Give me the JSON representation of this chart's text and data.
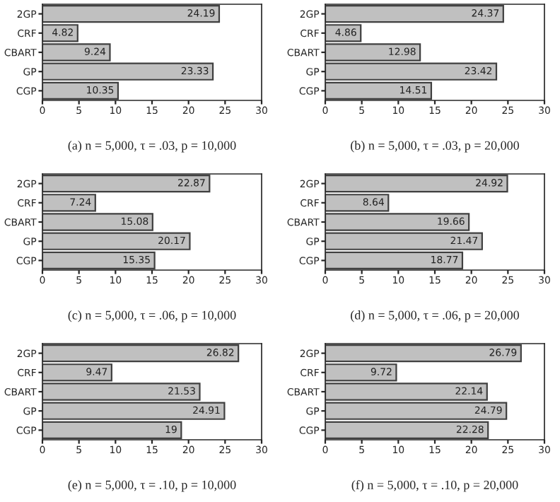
{
  "chart_data": [
    {
      "type": "bar",
      "orientation": "horizontal",
      "title": "(a) n = 5,000, τ = .03, p = 10,000",
      "categories": [
        "2GP",
        "CRF",
        "CBART",
        "GP",
        "CGP"
      ],
      "values": [
        24.19,
        4.82,
        9.24,
        23.33,
        10.35
      ],
      "color": "#c0c0c0",
      "xlim": [
        0,
        30
      ],
      "xticks": [
        0,
        5,
        10,
        15,
        20,
        25,
        30
      ],
      "data_labels": true,
      "grid": false,
      "legend": false
    },
    {
      "type": "bar",
      "orientation": "horizontal",
      "title": "(b) n = 5,000, τ = .03, p = 20,000",
      "categories": [
        "2GP",
        "CRF",
        "CBART",
        "GP",
        "CGP"
      ],
      "values": [
        24.37,
        4.86,
        12.98,
        23.42,
        14.51
      ],
      "color": "#c0c0c0",
      "xlim": [
        0,
        30
      ],
      "xticks": [
        0,
        5,
        10,
        15,
        20,
        25,
        30
      ],
      "data_labels": true,
      "grid": false,
      "legend": false
    },
    {
      "type": "bar",
      "orientation": "horizontal",
      "title": "(c) n = 5,000, τ = .06, p = 10,000",
      "categories": [
        "2GP",
        "CRF",
        "CBART",
        "GP",
        "CGP"
      ],
      "values": [
        22.87,
        7.24,
        15.08,
        20.17,
        15.35
      ],
      "color": "#c0c0c0",
      "xlim": [
        0,
        30
      ],
      "xticks": [
        0,
        5,
        10,
        15,
        20,
        25,
        30
      ],
      "data_labels": true,
      "grid": false,
      "legend": false
    },
    {
      "type": "bar",
      "orientation": "horizontal",
      "title": "(d) n = 5,000, τ = .06, p = 20,000",
      "categories": [
        "2GP",
        "CRF",
        "CBART",
        "GP",
        "CGP"
      ],
      "values": [
        24.92,
        8.64,
        19.66,
        21.47,
        18.77
      ],
      "color": "#c0c0c0",
      "xlim": [
        0,
        30
      ],
      "xticks": [
        0,
        5,
        10,
        15,
        20,
        25,
        30
      ],
      "data_labels": true,
      "grid": false,
      "legend": false
    },
    {
      "type": "bar",
      "orientation": "horizontal",
      "title": "(e) n = 5,000, τ = .10, p = 10,000",
      "categories": [
        "2GP",
        "CRF",
        "CBART",
        "GP",
        "CGP"
      ],
      "values": [
        26.82,
        9.47,
        21.53,
        24.91,
        19
      ],
      "color": "#c0c0c0",
      "xlim": [
        0,
        30
      ],
      "xticks": [
        0,
        5,
        10,
        15,
        20,
        25,
        30
      ],
      "data_labels": true,
      "grid": false,
      "legend": false
    },
    {
      "type": "bar",
      "orientation": "horizontal",
      "title": "(f) n = 5,000, τ = .10, p = 20,000",
      "categories": [
        "2GP",
        "CRF",
        "CBART",
        "GP",
        "CGP"
      ],
      "values": [
        26.79,
        9.72,
        22.14,
        24.79,
        22.28
      ],
      "color": "#c0c0c0",
      "xlim": [
        0,
        30
      ],
      "xticks": [
        0,
        5,
        10,
        15,
        20,
        25,
        30
      ],
      "data_labels": true,
      "grid": false,
      "legend": false
    }
  ]
}
